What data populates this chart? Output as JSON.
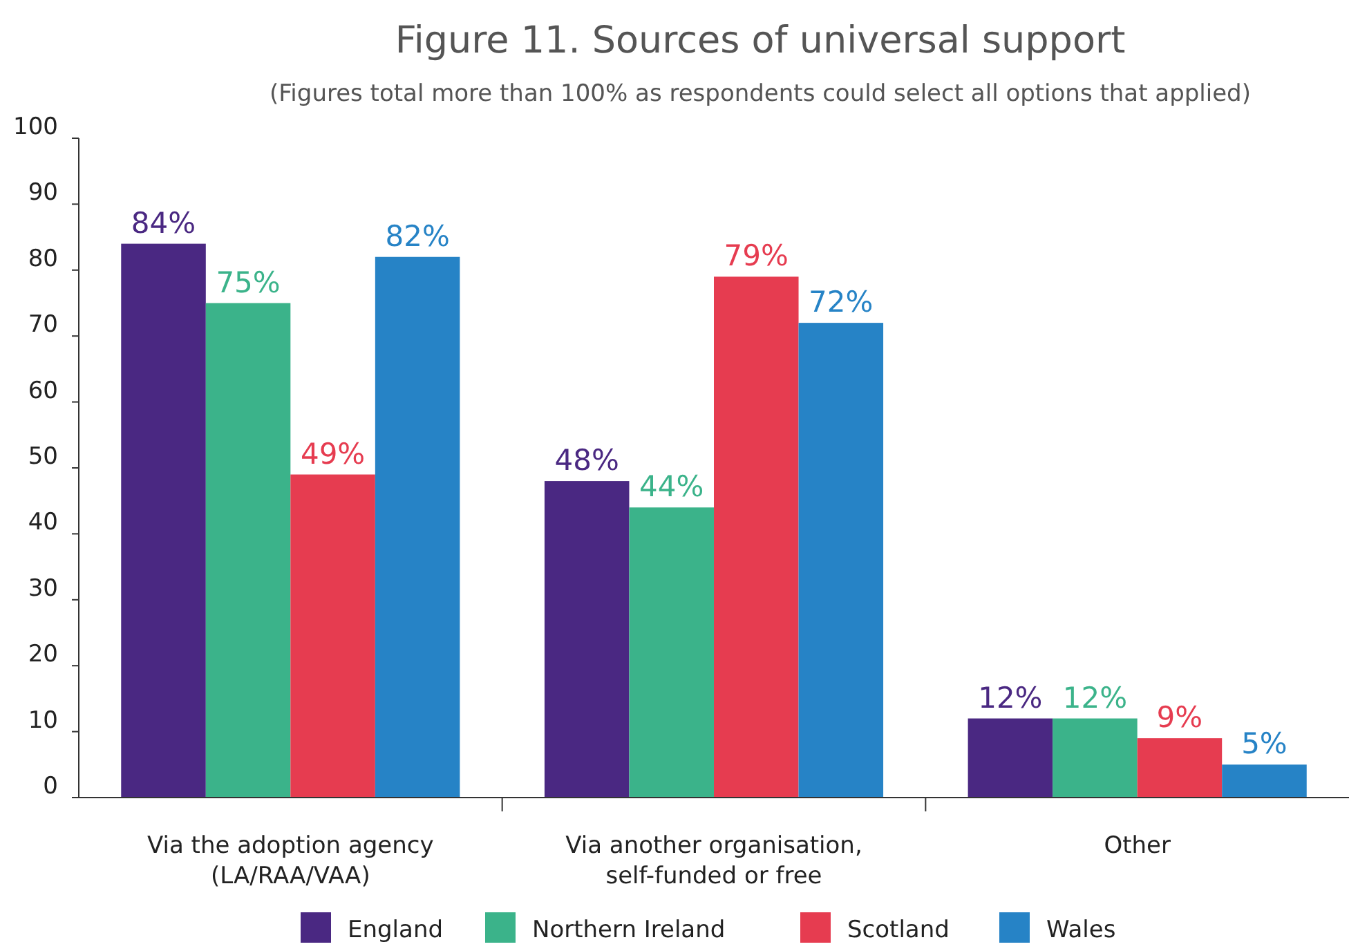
{
  "chart_data": {
    "type": "bar",
    "title": "Figure 11. Sources of universal support",
    "subtitle": "(Figures total more than 100% as respondents could select all options that applied)",
    "categories": [
      "Via the adoption agency\n(LA/RAA/VAA)",
      "Via another organisation,\nself-funded or free",
      "Other"
    ],
    "series": [
      {
        "name": "England",
        "color": "#4a2882",
        "values": [
          84,
          48,
          12
        ],
        "value_labels": [
          "84%",
          "48%",
          "12%"
        ]
      },
      {
        "name": "Northern Ireland",
        "color": "#3bb38a",
        "values": [
          75,
          44,
          12
        ],
        "value_labels": [
          "75%",
          "44%",
          "12%"
        ]
      },
      {
        "name": "Scotland",
        "color": "#e63c50",
        "values": [
          49,
          79,
          9
        ],
        "value_labels": [
          "49%",
          "79%",
          "9%"
        ]
      },
      {
        "name": "Wales",
        "color": "#2683c6",
        "values": [
          82,
          72,
          5
        ],
        "value_labels": [
          "82%",
          "72%",
          "5%"
        ]
      }
    ],
    "ylim": [
      0,
      100
    ],
    "yticks": [
      0,
      10,
      20,
      30,
      40,
      50,
      60,
      70,
      80,
      90,
      100
    ],
    "grid": false,
    "legend": "bottom"
  }
}
